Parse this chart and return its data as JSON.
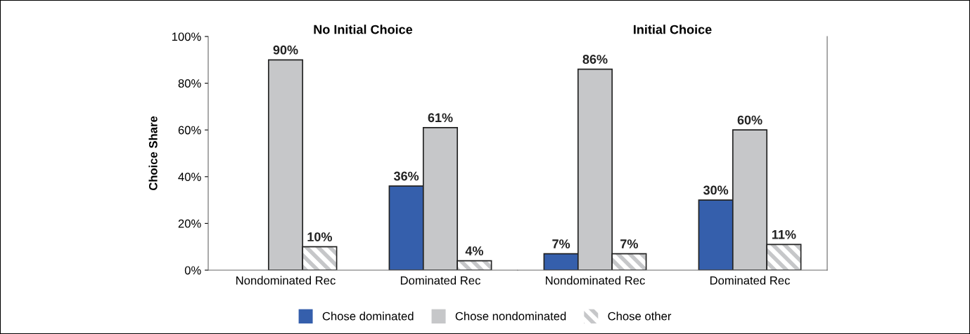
{
  "chart_data": [
    {
      "type": "bar",
      "title": "No Initial Choice",
      "ylabel": "Choice Share",
      "categories": [
        "Nondominated Rec",
        "Dominated Rec"
      ],
      "ylim": [
        0,
        100
      ],
      "yticks": [
        {
          "value": 0,
          "label": "0%"
        },
        {
          "value": 20,
          "label": "20%"
        },
        {
          "value": 40,
          "label": "40%"
        },
        {
          "value": 60,
          "label": "60%"
        },
        {
          "value": 80,
          "label": "80%"
        },
        {
          "value": 100,
          "label": "100%"
        }
      ],
      "data_labels": true,
      "grid": false,
      "legend": "bottom",
      "series": [
        {
          "name": "Chose dominated",
          "color": "#355fac",
          "values": [
            null,
            36
          ],
          "value_labels": [
            null,
            "36%"
          ]
        },
        {
          "name": "Chose nondominated",
          "color": "#c6c7c9",
          "values": [
            90,
            61
          ],
          "value_labels": [
            "90%",
            "61%"
          ]
        },
        {
          "name": "Chose other",
          "color": "#c6c7c9",
          "values": [
            10,
            4
          ],
          "value_labels": [
            "10%",
            "4%"
          ]
        }
      ]
    },
    {
      "type": "bar",
      "title": "Initial Choice",
      "categories": [
        "Nondominated Rec",
        "Dominated Rec"
      ],
      "ylim": [
        0,
        100
      ],
      "tick_labels": "x",
      "data_labels": true,
      "grid": false,
      "series": [
        {
          "color": "#355fac",
          "values": [
            7,
            30
          ],
          "value_labels": [
            "7%",
            "30%"
          ]
        },
        {
          "color": "#c6c7c9",
          "values": [
            86,
            60
          ],
          "value_labels": [
            "86%",
            "60%"
          ]
        },
        {
          "color": "#c6c7c9",
          "values": [
            7,
            11
          ],
          "value_labels": [
            "7%",
            "11%"
          ]
        }
      ]
    }
  ]
}
